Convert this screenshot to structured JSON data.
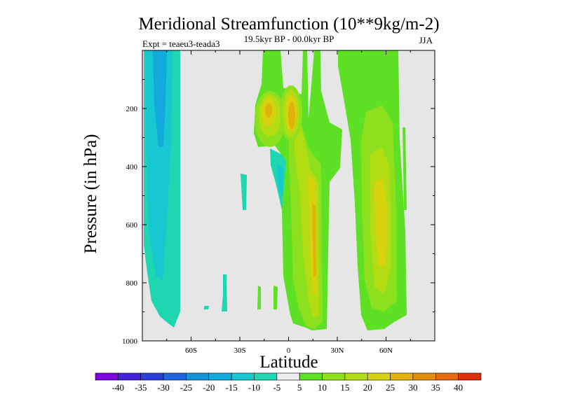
{
  "chart_data": {
    "type": "contour",
    "title": "Meridional Streamfunction (10**9kg/m-2)",
    "subtitle": "19.5kyr BP - 00.0kyr BP",
    "left_note": "Expt = teaeu3-teada3",
    "right_note": "JJA",
    "xlabel": "Latitude",
    "ylabel": "Pressure (in hPa)",
    "xlim": [
      -90,
      90
    ],
    "ylim": [
      0,
      1000
    ],
    "x_ticks": [
      {
        "value": -60,
        "label": "60S"
      },
      {
        "value": -30,
        "label": "30S"
      },
      {
        "value": 0,
        "label": "0"
      },
      {
        "value": 30,
        "label": "30N"
      },
      {
        "value": 60,
        "label": "60N"
      }
    ],
    "y_ticks": [
      {
        "value": 200,
        "label": "200"
      },
      {
        "value": 400,
        "label": "400"
      },
      {
        "value": 600,
        "label": "600"
      },
      {
        "value": 800,
        "label": "800"
      },
      {
        "value": 1000,
        "label": "1000"
      }
    ],
    "colorbar": {
      "labels": [
        "-40",
        "-35",
        "-30",
        "-25",
        "-20",
        "-15",
        "-10",
        "-5",
        "5",
        "10",
        "15",
        "20",
        "25",
        "30",
        "35",
        "40"
      ],
      "colors": [
        "#7f00e0",
        "#4422d9",
        "#2a3fd8",
        "#1f66dc",
        "#1392da",
        "#12aadb",
        "#15c8d2",
        "#1ed7b0",
        "#eeeeee",
        "#5ee024",
        "#8de01d",
        "#b4dc12",
        "#d8d20e",
        "#e0b20a",
        "#e38e0a",
        "#e46a0a",
        "#df2f05"
      ]
    },
    "background_color": "#e6e6e6"
  }
}
